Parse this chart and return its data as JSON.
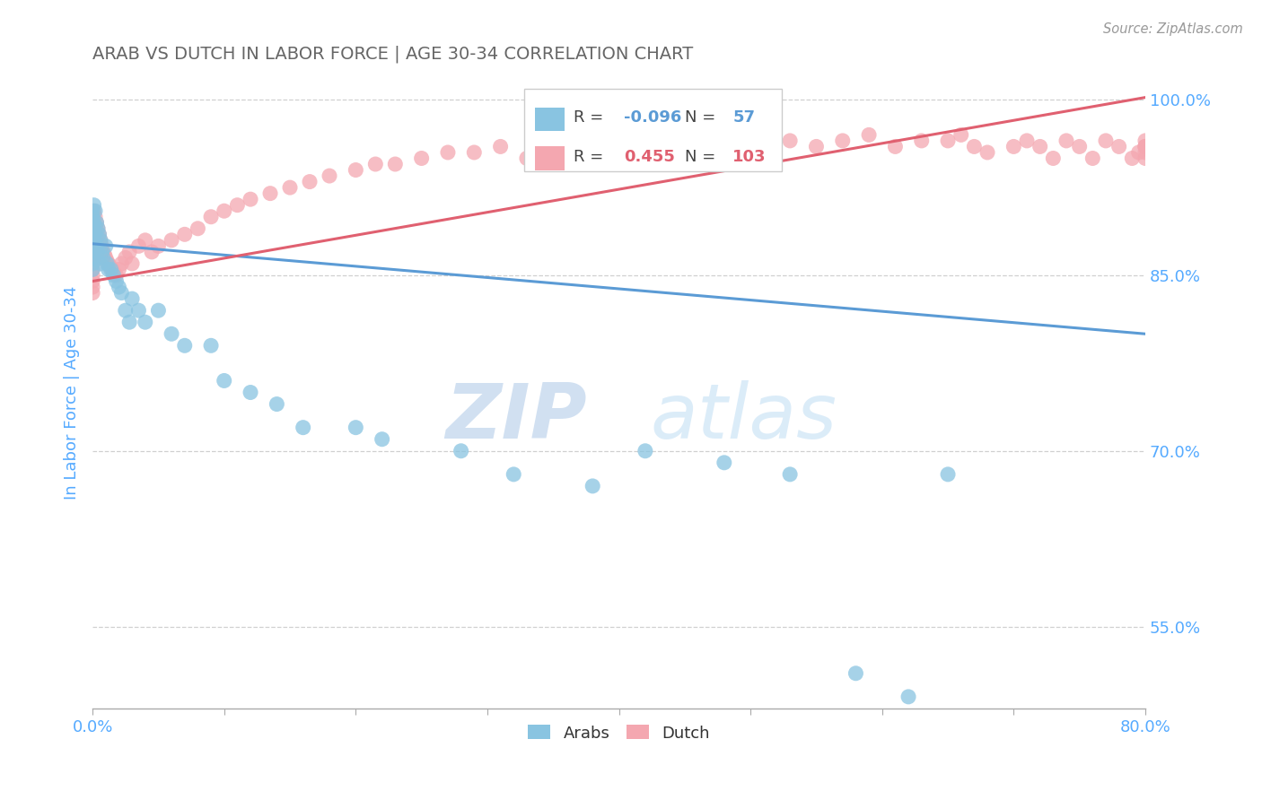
{
  "title": "ARAB VS DUTCH IN LABOR FORCE | AGE 30-34 CORRELATION CHART",
  "source_text": "Source: ZipAtlas.com",
  "ylabel": "In Labor Force | Age 30-34",
  "xlim": [
    0.0,
    0.8
  ],
  "ylim": [
    0.48,
    1.02
  ],
  "xticks": [
    0.0,
    0.1,
    0.2,
    0.3,
    0.4,
    0.5,
    0.6,
    0.7,
    0.8
  ],
  "yticks_right": [
    0.55,
    0.7,
    0.85,
    1.0
  ],
  "ytick_right_labels": [
    "55.0%",
    "70.0%",
    "85.0%",
    "100.0%"
  ],
  "arab_R": -0.096,
  "arab_N": 57,
  "dutch_R": 0.455,
  "dutch_N": 103,
  "arab_color": "#89c4e1",
  "dutch_color": "#f4a7b0",
  "arab_line_color": "#5b9bd5",
  "dutch_line_color": "#e06070",
  "background_color": "#ffffff",
  "grid_color": "#d0d0d0",
  "title_color": "#666666",
  "axis_label_color": "#55aaff",
  "legend_label_color": "#444444",
  "legend_arab_val_color": "#5b9bd5",
  "legend_dutch_val_color": "#e06070",
  "watermark_color": "#ddeeff",
  "arab_line_x0": 0.0,
  "arab_line_x1": 0.8,
  "arab_line_y0": 0.877,
  "arab_line_y1": 0.8,
  "dutch_line_x0": 0.0,
  "dutch_line_x1": 0.8,
  "dutch_line_y0": 0.845,
  "dutch_line_y1": 1.002,
  "arab_x": [
    0.0,
    0.0,
    0.0,
    0.0,
    0.0,
    0.0,
    0.0,
    0.0,
    0.0,
    0.0,
    0.0,
    0.001,
    0.001,
    0.001,
    0.002,
    0.002,
    0.003,
    0.003,
    0.004,
    0.004,
    0.005,
    0.006,
    0.006,
    0.007,
    0.008,
    0.01,
    0.011,
    0.012,
    0.014,
    0.016,
    0.018,
    0.02,
    0.022,
    0.025,
    0.028,
    0.03,
    0.035,
    0.04,
    0.05,
    0.06,
    0.07,
    0.09,
    0.1,
    0.12,
    0.14,
    0.16,
    0.2,
    0.22,
    0.28,
    0.32,
    0.38,
    0.42,
    0.48,
    0.53,
    0.58,
    0.62,
    0.65
  ],
  "arab_y": [
    0.905,
    0.9,
    0.895,
    0.89,
    0.885,
    0.88,
    0.875,
    0.87,
    0.865,
    0.86,
    0.855,
    0.91,
    0.895,
    0.88,
    0.905,
    0.885,
    0.895,
    0.875,
    0.89,
    0.87,
    0.885,
    0.88,
    0.86,
    0.87,
    0.865,
    0.875,
    0.86,
    0.855,
    0.855,
    0.85,
    0.845,
    0.84,
    0.835,
    0.82,
    0.81,
    0.83,
    0.82,
    0.81,
    0.82,
    0.8,
    0.79,
    0.79,
    0.76,
    0.75,
    0.74,
    0.72,
    0.72,
    0.71,
    0.7,
    0.68,
    0.67,
    0.7,
    0.69,
    0.68,
    0.51,
    0.49,
    0.68
  ],
  "dutch_x": [
    0.0,
    0.0,
    0.0,
    0.0,
    0.0,
    0.0,
    0.0,
    0.0,
    0.0,
    0.0,
    0.0,
    0.0,
    0.0,
    0.0,
    0.001,
    0.001,
    0.001,
    0.001,
    0.001,
    0.002,
    0.002,
    0.002,
    0.003,
    0.003,
    0.004,
    0.004,
    0.005,
    0.005,
    0.006,
    0.007,
    0.008,
    0.009,
    0.01,
    0.011,
    0.012,
    0.013,
    0.015,
    0.016,
    0.018,
    0.02,
    0.022,
    0.025,
    0.028,
    0.03,
    0.035,
    0.04,
    0.045,
    0.05,
    0.06,
    0.07,
    0.08,
    0.09,
    0.1,
    0.11,
    0.12,
    0.135,
    0.15,
    0.165,
    0.18,
    0.2,
    0.215,
    0.23,
    0.25,
    0.27,
    0.29,
    0.31,
    0.33,
    0.35,
    0.37,
    0.39,
    0.41,
    0.43,
    0.45,
    0.47,
    0.49,
    0.51,
    0.53,
    0.55,
    0.57,
    0.59,
    0.61,
    0.63,
    0.65,
    0.66,
    0.67,
    0.68,
    0.7,
    0.71,
    0.72,
    0.73,
    0.74,
    0.75,
    0.76,
    0.77,
    0.78,
    0.79,
    0.795,
    0.8,
    0.8,
    0.8,
    0.8,
    0.8,
    0.8
  ],
  "dutch_y": [
    0.9,
    0.895,
    0.89,
    0.885,
    0.88,
    0.875,
    0.87,
    0.865,
    0.86,
    0.855,
    0.85,
    0.845,
    0.84,
    0.835,
    0.905,
    0.895,
    0.885,
    0.875,
    0.865,
    0.9,
    0.89,
    0.88,
    0.895,
    0.88,
    0.89,
    0.875,
    0.885,
    0.87,
    0.88,
    0.875,
    0.87,
    0.868,
    0.865,
    0.862,
    0.86,
    0.858,
    0.855,
    0.852,
    0.85,
    0.855,
    0.86,
    0.865,
    0.87,
    0.86,
    0.875,
    0.88,
    0.87,
    0.875,
    0.88,
    0.885,
    0.89,
    0.9,
    0.905,
    0.91,
    0.915,
    0.92,
    0.925,
    0.93,
    0.935,
    0.94,
    0.945,
    0.945,
    0.95,
    0.955,
    0.955,
    0.96,
    0.95,
    0.96,
    0.955,
    0.965,
    0.96,
    0.965,
    0.96,
    0.965,
    0.97,
    0.96,
    0.965,
    0.96,
    0.965,
    0.97,
    0.96,
    0.965,
    0.965,
    0.97,
    0.96,
    0.955,
    0.96,
    0.965,
    0.96,
    0.95,
    0.965,
    0.96,
    0.95,
    0.965,
    0.96,
    0.95,
    0.955,
    0.96,
    0.965,
    0.95,
    0.96,
    0.955,
    0.96
  ]
}
